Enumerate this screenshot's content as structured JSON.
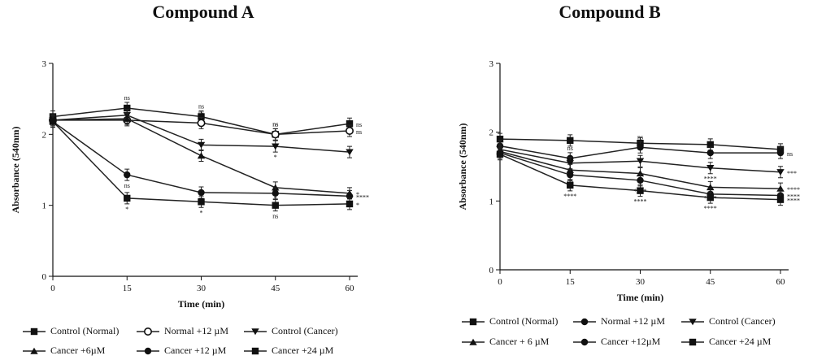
{
  "chart_data": [
    {
      "type": "line",
      "title": "Compound A",
      "xlabel": "Time (min)",
      "ylabel": "Absorbance (540nm)",
      "x": [
        0,
        15,
        30,
        45,
        60
      ],
      "x_ticks": [
        "0",
        "15",
        "30",
        "45",
        "60"
      ],
      "y_ticks": [
        "0",
        "1",
        "2",
        "3"
      ],
      "xlim": [
        0,
        60
      ],
      "ylim": [
        0,
        3
      ],
      "grid": false,
      "legend_position": "bottom",
      "series": [
        {
          "name": "Control (Normal)",
          "marker": "square",
          "values": [
            2.25,
            2.37,
            2.25,
            2.0,
            2.15
          ],
          "annotations": [
            "",
            "ns",
            "ns",
            "ns",
            "ns"
          ]
        },
        {
          "name": "Normal +12 µM",
          "marker": "circle-open",
          "values": [
            2.2,
            2.2,
            2.16,
            2.0,
            2.05
          ],
          "annotations": [
            "",
            "",
            "ns",
            "ns",
            "ns"
          ]
        },
        {
          "name": "Control (Cancer)",
          "marker": "triangle-down",
          "values": [
            2.2,
            2.27,
            1.85,
            1.83,
            1.75
          ],
          "annotations": [
            "",
            "",
            "",
            "*",
            ""
          ]
        },
        {
          "name": "Cancer +6µM",
          "marker": "triangle-up",
          "values": [
            2.2,
            2.22,
            1.7,
            1.25,
            1.17
          ],
          "annotations": [
            "",
            "",
            "",
            "*",
            "*"
          ]
        },
        {
          "name": "Cancer +12 µM",
          "marker": "circle",
          "values": [
            2.18,
            1.43,
            1.18,
            1.17,
            1.13
          ],
          "annotations": [
            "",
            "ns",
            "*",
            "",
            "****"
          ]
        },
        {
          "name": "Cancer +24 µM",
          "marker": "square",
          "values": [
            2.18,
            1.1,
            1.05,
            1.0,
            1.02
          ],
          "annotations": [
            "",
            "*",
            "*",
            "ns",
            "*"
          ]
        }
      ]
    },
    {
      "type": "line",
      "title": "Compound B",
      "xlabel": "Time (min)",
      "ylabel": "Absorbance (540nm)",
      "x": [
        0,
        15,
        30,
        45,
        60
      ],
      "x_ticks": [
        "0",
        "15",
        "30",
        "45",
        "60"
      ],
      "y_ticks": [
        "0",
        "1",
        "2",
        "3"
      ],
      "xlim": [
        0,
        60
      ],
      "ylim": [
        0,
        3
      ],
      "grid": false,
      "legend_position": "bottom",
      "series": [
        {
          "name": "Control (Normal)",
          "marker": "square",
          "values": [
            1.9,
            1.88,
            1.84,
            1.82,
            1.75
          ],
          "annotations": [
            "",
            "",
            "",
            "",
            ""
          ]
        },
        {
          "name": "Normal +12 µM",
          "marker": "circle",
          "values": [
            1.8,
            1.62,
            1.78,
            1.7,
            1.7
          ],
          "annotations": [
            "",
            "ns",
            "ns",
            "ns",
            "ns"
          ]
        },
        {
          "name": "Control (Cancer)",
          "marker": "triangle-down",
          "values": [
            1.75,
            1.55,
            1.58,
            1.48,
            1.42
          ],
          "annotations": [
            "",
            "",
            "",
            "****",
            "***"
          ]
        },
        {
          "name": "Cancer + 6 µM",
          "marker": "triangle-up",
          "values": [
            1.72,
            1.45,
            1.4,
            1.2,
            1.18
          ],
          "annotations": [
            "",
            "ns",
            "",
            "****",
            "****"
          ]
        },
        {
          "name": "Cancer +12µM",
          "marker": "circle",
          "values": [
            1.7,
            1.38,
            1.3,
            1.1,
            1.08
          ],
          "annotations": [
            "",
            "",
            "****",
            "",
            "****"
          ]
        },
        {
          "name": "Cancer +24 µM",
          "marker": "square",
          "values": [
            1.68,
            1.23,
            1.15,
            1.05,
            1.02
          ],
          "annotations": [
            "",
            "****",
            "****",
            "****",
            "****"
          ]
        }
      ]
    }
  ],
  "legends": [
    {
      "rows": [
        [
          "Control (Normal)",
          "Normal +12 µM",
          "Control (Cancer)"
        ],
        [
          "Cancer +6µM",
          "Cancer +12 µM",
          "Cancer +24 µM"
        ]
      ]
    },
    {
      "rows": [
        [
          "Control (Normal)",
          "Normal +12 µM",
          "Control (Cancer)"
        ],
        [
          "Cancer + 6 µM",
          "Cancer +12µM",
          "Cancer +24 µM"
        ]
      ]
    }
  ]
}
